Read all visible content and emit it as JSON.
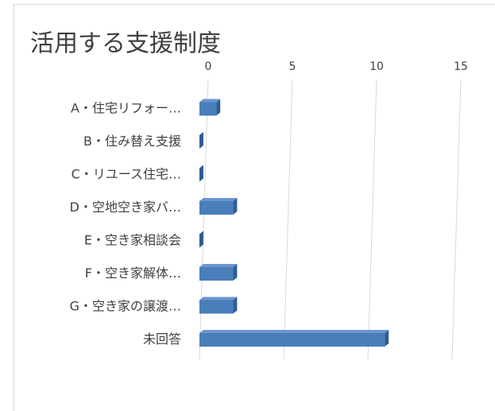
{
  "chart_data": {
    "type": "bar3d",
    "orientation": "horizontal",
    "title": "活用する支援制度",
    "categories": [
      "A・住宅リフォー…",
      "B・住み替え支援",
      "C・リユース住宅…",
      "D・空地空き家バ…",
      "E・空き家相談会",
      "F・空き家解体…",
      "G・空き家の譲渡…",
      "未回答"
    ],
    "values": [
      1,
      0,
      0,
      2,
      0,
      2,
      2,
      11
    ],
    "color": "#4a7ebb",
    "xlim": [
      0,
      15
    ],
    "xticks": [
      0,
      5,
      10,
      15
    ],
    "grid": true
  }
}
